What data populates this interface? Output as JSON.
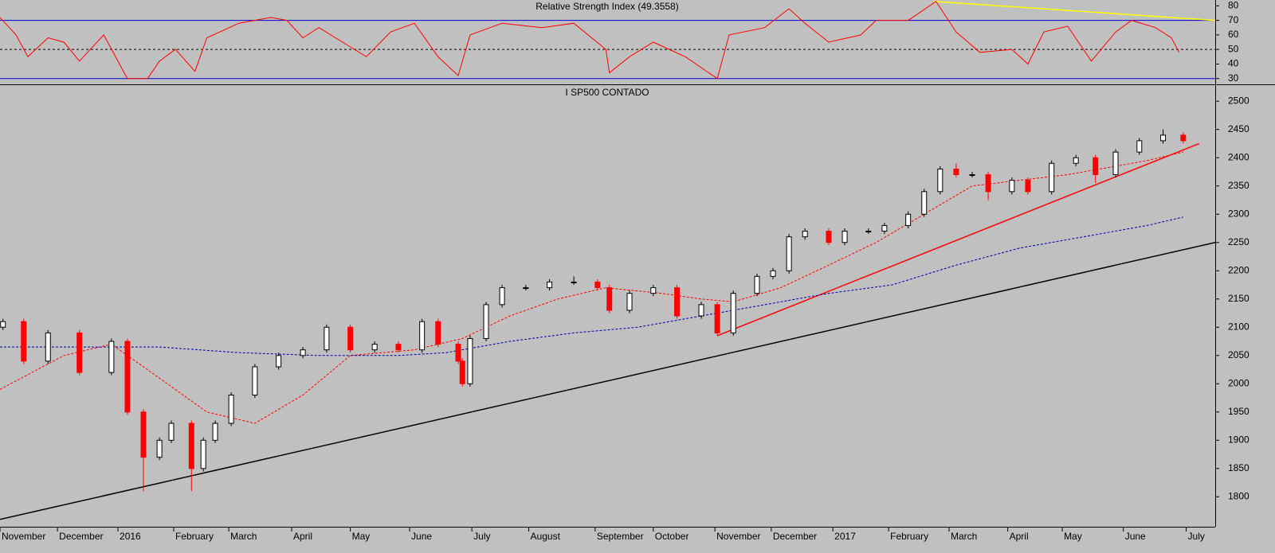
{
  "chart_data": [
    {
      "type": "line",
      "title": "Relative Strength Index (49.3558)",
      "xlim": [
        0,
        20.5
      ],
      "ylim": [
        26,
        84
      ],
      "yticks": [
        30,
        40,
        50,
        60,
        70,
        80
      ],
      "levels": [
        {
          "value": 70,
          "color": "#0000cc",
          "style": "solid"
        },
        {
          "value": 50,
          "color": "#000000",
          "style": "dashed"
        },
        {
          "value": 30,
          "color": "#0000cc",
          "style": "solid"
        }
      ],
      "series": [
        {
          "color": "#ff0000",
          "x": [
            0.0,
            0.27,
            0.47,
            0.81,
            1.08,
            1.34,
            1.75,
            2.15,
            2.49,
            2.69,
            2.96,
            3.29,
            3.49,
            4.03,
            4.57,
            4.84,
            5.11,
            5.38,
            5.78,
            6.18,
            6.59,
            6.99,
            7.39,
            7.73,
            7.93,
            8.47,
            9.14,
            9.68,
            10.22,
            10.28,
            10.62,
            11.02,
            11.56,
            12.1,
            12.3,
            12.9,
            13.31,
            13.58,
            13.98,
            14.52,
            14.78,
            15.32,
            15.79,
            16.13,
            16.53,
            17.07,
            17.34,
            17.61,
            18.01,
            18.41,
            18.82,
            19.09,
            19.49,
            19.76,
            19.89
          ],
          "values": [
            72,
            60,
            45,
            58,
            55,
            42,
            60,
            30,
            30,
            42,
            50,
            35,
            58,
            68,
            72,
            70,
            58,
            65,
            55,
            45,
            62,
            68,
            45,
            32,
            60,
            68,
            65,
            68,
            50,
            34,
            45,
            55,
            45,
            30,
            60,
            65,
            78,
            68,
            55,
            60,
            70,
            70,
            83,
            62,
            48,
            50,
            40,
            62,
            66,
            42,
            62,
            70,
            65,
            58,
            48
          ]
        }
      ],
      "trendlines": [
        {
          "color": "#ffff00",
          "x": [
            15.75,
            20.5
          ],
          "values": [
            83,
            70
          ]
        }
      ]
    },
    {
      "type": "candlestick",
      "title": "I SP500 CONTADO",
      "xlim": [
        0,
        20.5
      ],
      "ylim": [
        1747,
        2527
      ],
      "yticks": [
        1800,
        1850,
        1900,
        1950,
        2000,
        2050,
        2100,
        2150,
        2200,
        2250,
        2300,
        2350,
        2400,
        2450,
        2500
      ],
      "xticks": [
        {
          "value": 0,
          "label": "November"
        },
        {
          "value": 0.97,
          "label": "December"
        },
        {
          "value": 1.99,
          "label": "2016"
        },
        {
          "value": 2.93,
          "label": "February"
        },
        {
          "value": 3.86,
          "label": "March"
        },
        {
          "value": 4.92,
          "label": "April"
        },
        {
          "value": 5.91,
          "label": "May"
        },
        {
          "value": 6.91,
          "label": "June"
        },
        {
          "value": 7.96,
          "label": "July"
        },
        {
          "value": 8.92,
          "label": "August"
        },
        {
          "value": 10.04,
          "label": "September"
        },
        {
          "value": 11.02,
          "label": "October"
        },
        {
          "value": 12.06,
          "label": "November"
        },
        {
          "value": 13.01,
          "label": "December"
        },
        {
          "value": 14.05,
          "label": "2017"
        },
        {
          "value": 14.99,
          "label": "February"
        },
        {
          "value": 16.01,
          "label": "March"
        },
        {
          "value": 17.0,
          "label": "April"
        },
        {
          "value": 17.92,
          "label": "May"
        },
        {
          "value": 18.95,
          "label": "June"
        },
        {
          "value": 20.01,
          "label": "July"
        }
      ],
      "up_color": "#ffffff",
      "down_color": "#ff0000",
      "x": [
        0.05,
        0.4,
        0.81,
        1.34,
        1.88,
        2.15,
        2.42,
        2.69,
        2.89,
        3.23,
        3.43,
        3.63,
        3.9,
        4.3,
        4.7,
        5.11,
        5.51,
        5.91,
        6.32,
        6.72,
        7.12,
        7.39,
        7.73,
        7.8,
        7.93,
        8.2,
        8.47,
        8.87,
        9.27,
        9.68,
        10.08,
        10.28,
        10.62,
        11.02,
        11.42,
        11.83,
        12.1,
        12.37,
        12.77,
        13.04,
        13.31,
        13.58,
        13.98,
        14.25,
        14.65,
        14.92,
        15.32,
        15.59,
        15.86,
        16.13,
        16.4,
        16.67,
        17.07,
        17.34,
        17.74,
        18.15,
        18.48,
        18.82,
        19.22,
        19.62,
        19.96
      ],
      "open": [
        2100,
        2110,
        2040,
        2090,
        2020,
        2075,
        1950,
        1870,
        1900,
        1930,
        1850,
        1900,
        1930,
        1980,
        2030,
        2050,
        2060,
        2100,
        2060,
        2070,
        2060,
        2110,
        2070,
        2040,
        2000,
        2080,
        2140,
        2170,
        2170,
        2180,
        2180,
        2170,
        2130,
        2160,
        2170,
        2120,
        2140,
        2090,
        2160,
        2190,
        2200,
        2260,
        2270,
        2250,
        2270,
        2270,
        2280,
        2300,
        2340,
        2380,
        2370,
        2370,
        2340,
        2360,
        2340,
        2390,
        2400,
        2370,
        2410,
        2430,
        2440
      ],
      "high": [
        2115,
        2115,
        2095,
        2095,
        2080,
        2080,
        1955,
        1905,
        1935,
        1935,
        1905,
        1935,
        1985,
        2035,
        2055,
        2065,
        2105,
        2105,
        2075,
        2075,
        2115,
        2115,
        2075,
        2045,
        2085,
        2145,
        2175,
        2175,
        2185,
        2190,
        2185,
        2175,
        2165,
        2175,
        2175,
        2145,
        2145,
        2165,
        2195,
        2205,
        2265,
        2275,
        2275,
        2275,
        2275,
        2285,
        2305,
        2345,
        2385,
        2390,
        2375,
        2375,
        2365,
        2365,
        2395,
        2405,
        2405,
        2415,
        2435,
        2450,
        2445
      ],
      "low": [
        2095,
        2035,
        2035,
        2015,
        2015,
        1945,
        1810,
        1865,
        1895,
        1810,
        1845,
        1895,
        1925,
        1975,
        2025,
        2045,
        2055,
        2055,
        2055,
        2055,
        2055,
        2065,
        2035,
        1995,
        1995,
        2075,
        2135,
        2165,
        2165,
        2175,
        2165,
        2125,
        2125,
        2155,
        2115,
        2115,
        2085,
        2085,
        2155,
        2185,
        2195,
        2255,
        2245,
        2245,
        2265,
        2265,
        2275,
        2295,
        2335,
        2365,
        2365,
        2325,
        2335,
        2335,
        2335,
        2385,
        2355,
        2365,
        2405,
        2425,
        2425
      ],
      "close": [
        2110,
        2040,
        2090,
        2020,
        2075,
        1950,
        1870,
        1900,
        1930,
        1850,
        1900,
        1930,
        1980,
        2030,
        2050,
        2060,
        2100,
        2060,
        2070,
        2060,
        2110,
        2070,
        2040,
        2000,
        2080,
        2140,
        2170,
        2170,
        2180,
        2180,
        2170,
        2130,
        2160,
        2170,
        2120,
        2140,
        2090,
        2160,
        2190,
        2200,
        2260,
        2270,
        2250,
        2270,
        2270,
        2280,
        2300,
        2340,
        2380,
        2370,
        2370,
        2340,
        2360,
        2340,
        2390,
        2400,
        2370,
        2410,
        2430,
        2440,
        2430
      ],
      "series": [
        {
          "color": "#ff0000",
          "style": "dashed",
          "x": [
            0,
            1.08,
            1.88,
            2.69,
            3.49,
            4.3,
            5.11,
            5.91,
            6.99,
            7.8,
            8.6,
            9.41,
            10.22,
            11.16,
            11.83,
            12.37,
            13.17,
            13.98,
            14.78,
            15.59,
            16.4,
            17.2,
            18.01,
            18.55,
            19.35,
            19.96
          ],
          "values": [
            1990,
            2050,
            2070,
            2010,
            1950,
            1930,
            1980,
            2050,
            2060,
            2080,
            2120,
            2150,
            2170,
            2160,
            2150,
            2145,
            2170,
            2210,
            2250,
            2300,
            2350,
            2360,
            2370,
            2380,
            2395,
            2410
          ]
        },
        {
          "color": "#0000aa",
          "style": "dashed",
          "x": [
            0,
            1.34,
            2.69,
            4.03,
            5.38,
            6.72,
            7.53,
            8.6,
            9.68,
            10.75,
            11.83,
            12.9,
            13.98,
            15.05,
            16.13,
            17.2,
            18.28,
            19.35,
            19.96
          ],
          "values": [
            2065,
            2065,
            2065,
            2055,
            2050,
            2050,
            2055,
            2075,
            2090,
            2100,
            2120,
            2140,
            2160,
            2175,
            2210,
            2240,
            2260,
            2280,
            2295
          ]
        }
      ],
      "trendlines": [
        {
          "color": "#000000",
          "x": [
            0,
            20.5
          ],
          "values": [
            1760,
            2250
          ]
        },
        {
          "color": "#ff0000",
          "x": [
            12.1,
            20.23
          ],
          "values": [
            2085,
            2425
          ]
        }
      ]
    }
  ]
}
